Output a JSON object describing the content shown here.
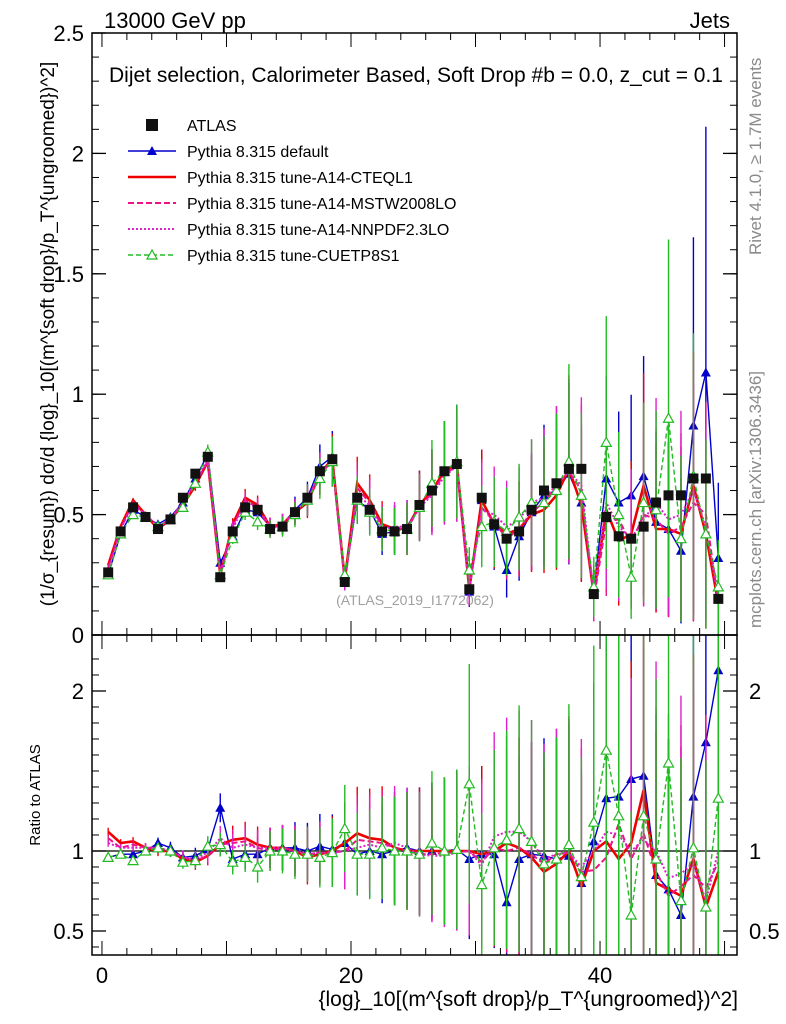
{
  "header": {
    "left": "13000 GeV pp",
    "right": "Jets",
    "subtitle": "Dijet selection, Calorimeter Based, Soft Drop #b = 0.0, z_cut = 0.1"
  },
  "side_labels": {
    "rivet": "Rivet 4.1.0, ≥ 1.7M events",
    "mcplots": "mcplots.cern.ch [arXiv:1306.3436]"
  },
  "watermark": "(ATLAS_2019_I1772062)",
  "chart_data": {
    "type": "line",
    "title": "Dijet selection, Calorimeter Based, Soft Drop #b = 0.0, z_cut = 0.1",
    "xlabel": "{log}_10[(m^{soft drop}/p_T^{ungroomed})^2]",
    "ylabel": "(1/σ_{resum}) dσ/d {log}_10[(m^{soft drop}/p_T^{ungroomed})^2]",
    "ratio_ylabel": "Ratio to ATLAS",
    "xlim": [
      -0.8,
      51
    ],
    "ylim": [
      0,
      2.5
    ],
    "ratio_ylim": [
      0.35,
      2.35
    ],
    "x_ticks": [
      0,
      20,
      40
    ],
    "y_ticks": [
      0,
      0.5,
      1,
      1.5,
      2,
      2.5
    ],
    "y_tick_labels": [
      "0",
      "0.5",
      "1",
      "1.5",
      "2",
      "2.5"
    ],
    "ratio_ticks": [
      0.5,
      1,
      2
    ],
    "ratio_tick_labels": [
      "0.5",
      "1",
      "2"
    ],
    "x": [
      0.5,
      1.5,
      2.5,
      3.5,
      4.5,
      5.5,
      6.5,
      7.5,
      8.5,
      9.5,
      10.5,
      11.5,
      12.5,
      13.5,
      14.5,
      15.5,
      16.5,
      17.5,
      18.5,
      19.5,
      20.5,
      21.5,
      22.5,
      23.5,
      24.5,
      25.5,
      26.5,
      27.5,
      28.5,
      29.5,
      30.5,
      31.5,
      32.5,
      33.5,
      34.5,
      35.5,
      36.5,
      37.5,
      38.5,
      39.5,
      40.5,
      41.5,
      42.5,
      43.5,
      44.5,
      45.5,
      46.5,
      47.5,
      48.5,
      49.5
    ],
    "series": [
      {
        "name": "ATLAS",
        "style": "data",
        "values": [
          0.26,
          0.43,
          0.53,
          0.49,
          0.44,
          0.48,
          0.57,
          0.67,
          0.74,
          0.24,
          0.43,
          0.53,
          0.52,
          0.44,
          0.45,
          0.51,
          0.57,
          0.68,
          0.73,
          0.22,
          0.57,
          0.52,
          0.43,
          0.43,
          0.44,
          0.54,
          0.6,
          0.68,
          0.71,
          0.19,
          0.57,
          0.46,
          0.4,
          0.43,
          0.52,
          0.6,
          0.63,
          0.69,
          0.69,
          0.17,
          0.49,
          0.41,
          0.4,
          0.45,
          0.55,
          0.58,
          0.58,
          0.65,
          0.65,
          0.15
        ],
        "ratio": [
          1,
          1,
          1,
          1,
          1,
          1,
          1,
          1,
          1,
          1,
          1,
          1,
          1,
          1,
          1,
          1,
          1,
          1,
          1,
          1,
          1,
          1,
          1,
          1,
          1,
          1,
          1,
          1,
          1,
          1,
          1,
          1,
          1,
          1,
          1,
          1,
          1,
          1,
          1,
          1,
          1,
          1,
          1,
          1,
          1,
          1,
          1,
          1,
          1,
          1
        ]
      },
      {
        "name": "Pythia 8.315 default",
        "color": "#0000cc",
        "dash": "",
        "marker": "triangle-filled",
        "values": [
          0.25,
          0.42,
          0.52,
          0.49,
          0.46,
          0.49,
          0.55,
          0.65,
          0.75,
          0.3,
          0.41,
          0.52,
          0.51,
          0.45,
          0.46,
          0.52,
          0.57,
          0.7,
          0.74,
          0.23,
          0.56,
          0.52,
          0.42,
          0.43,
          0.45,
          0.54,
          0.6,
          0.68,
          0.72,
          0.18,
          0.56,
          0.45,
          0.27,
          0.41,
          0.51,
          0.58,
          0.6,
          0.67,
          0.55,
          0.18,
          0.65,
          0.55,
          0.58,
          0.66,
          0.47,
          0.44,
          0.35,
          0.87,
          1.09,
          0.32
        ],
        "ratio": [
          0.96,
          0.98,
          0.98,
          1.0,
          1.05,
          1.02,
          0.96,
          0.97,
          1.01,
          1.27,
          0.95,
          0.98,
          0.98,
          1.02,
          1.02,
          1.02,
          1.0,
          1.03,
          1.01,
          1.05,
          0.98,
          1.0,
          0.98,
          1.0,
          1.02,
          1.0,
          1.0,
          1.0,
          1.01,
          0.95,
          0.98,
          0.98,
          0.68,
          0.95,
          0.98,
          0.97,
          0.95,
          0.97,
          0.8,
          1.06,
          1.33,
          1.34,
          1.45,
          1.47,
          0.85,
          0.76,
          0.6,
          1.34,
          1.68,
          2.13
        ]
      },
      {
        "name": "Pythia 8.315 tune-A14-CTEQL1",
        "color": "#ee0000",
        "dash": "",
        "width": 2.6,
        "values": [
          0.29,
          0.45,
          0.56,
          0.5,
          0.44,
          0.48,
          0.54,
          0.62,
          0.72,
          0.25,
          0.46,
          0.57,
          0.54,
          0.45,
          0.46,
          0.51,
          0.55,
          0.67,
          0.73,
          0.23,
          0.63,
          0.56,
          0.46,
          0.44,
          0.44,
          0.54,
          0.6,
          0.68,
          0.71,
          0.19,
          0.56,
          0.46,
          0.42,
          0.44,
          0.5,
          0.52,
          0.58,
          0.69,
          0.54,
          0.17,
          0.52,
          0.39,
          0.42,
          0.62,
          0.44,
          0.44,
          0.42,
          0.62,
          0.42,
          0.13
        ],
        "ratio": [
          1.12,
          1.05,
          1.06,
          1.02,
          1.0,
          1.0,
          0.95,
          0.93,
          0.97,
          1.04,
          1.07,
          1.08,
          1.04,
          1.02,
          1.02,
          1.0,
          0.96,
          0.98,
          1.0,
          1.05,
          1.11,
          1.08,
          1.07,
          1.02,
          1.0,
          1.0,
          1.0,
          1.0,
          1.0,
          1.0,
          0.98,
          1.0,
          1.05,
          1.02,
          0.96,
          0.87,
          0.92,
          1.0,
          0.78,
          1.0,
          1.06,
          0.95,
          1.05,
          1.38,
          0.8,
          0.76,
          0.72,
          0.95,
          0.65,
          0.87
        ]
      },
      {
        "name": "Pythia 8.315 tune-A14-MSTW2008LO",
        "color": "#ee1188",
        "dash": "6,3",
        "width": 2,
        "values": [
          0.28,
          0.44,
          0.55,
          0.5,
          0.45,
          0.48,
          0.55,
          0.63,
          0.72,
          0.25,
          0.45,
          0.56,
          0.53,
          0.44,
          0.46,
          0.51,
          0.56,
          0.67,
          0.72,
          0.22,
          0.61,
          0.55,
          0.45,
          0.44,
          0.44,
          0.53,
          0.59,
          0.67,
          0.7,
          0.19,
          0.53,
          0.47,
          0.4,
          0.44,
          0.51,
          0.55,
          0.62,
          0.68,
          0.6,
          0.15,
          0.47,
          0.48,
          0.38,
          0.5,
          0.48,
          0.42,
          0.45,
          0.55,
          0.5,
          0.14
        ],
        "ratio": [
          1.08,
          1.02,
          1.04,
          1.02,
          1.02,
          1.0,
          0.96,
          0.94,
          0.97,
          1.04,
          1.05,
          1.06,
          1.02,
          1.0,
          1.02,
          1.0,
          0.98,
          0.99,
          0.99,
          1.0,
          1.07,
          1.06,
          1.05,
          1.02,
          1.0,
          0.98,
          0.98,
          0.99,
          0.99,
          1.0,
          0.93,
          1.02,
          1.0,
          1.02,
          0.98,
          0.92,
          0.98,
          0.99,
          0.87,
          0.88,
          0.96,
          1.17,
          0.95,
          1.11,
          0.87,
          0.72,
          0.78,
          0.85,
          0.77,
          0.93
        ]
      },
      {
        "name": "Pythia 8.315 tune-A14-NNPDF2.3LO",
        "color": "#dd22cc",
        "dash": "2,2",
        "width": 2,
        "values": [
          0.27,
          0.44,
          0.54,
          0.5,
          0.45,
          0.48,
          0.55,
          0.64,
          0.73,
          0.26,
          0.44,
          0.55,
          0.53,
          0.45,
          0.46,
          0.51,
          0.56,
          0.67,
          0.72,
          0.22,
          0.58,
          0.54,
          0.44,
          0.45,
          0.45,
          0.53,
          0.58,
          0.66,
          0.7,
          0.19,
          0.52,
          0.5,
          0.45,
          0.48,
          0.55,
          0.57,
          0.62,
          0.68,
          0.62,
          0.17,
          0.55,
          0.45,
          0.4,
          0.48,
          0.55,
          0.48,
          0.5,
          0.6,
          0.45,
          0.15
        ],
        "ratio": [
          1.05,
          1.02,
          1.02,
          1.02,
          1.02,
          1.0,
          0.96,
          0.95,
          0.99,
          1.08,
          1.02,
          1.04,
          1.02,
          1.02,
          1.02,
          1.0,
          0.98,
          0.99,
          0.99,
          1.0,
          1.02,
          1.04,
          1.02,
          1.05,
          1.02,
          0.98,
          0.97,
          0.97,
          0.99,
          1.0,
          0.91,
          1.09,
          1.12,
          1.12,
          1.06,
          0.95,
          0.98,
          0.99,
          0.9,
          1.0,
          1.12,
          1.1,
          1.0,
          1.07,
          1.0,
          0.83,
          0.86,
          0.92,
          0.69,
          1.0
        ]
      },
      {
        "name": "Pythia 8.315 tune-CUETP8S1",
        "color": "#22bb22",
        "dash": "5,3",
        "marker": "triangle-open",
        "width": 1.4,
        "values": [
          0.25,
          0.42,
          0.5,
          0.49,
          0.45,
          0.48,
          0.53,
          0.63,
          0.76,
          0.25,
          0.4,
          0.51,
          0.47,
          0.44,
          0.45,
          0.5,
          0.56,
          0.65,
          0.72,
          0.25,
          0.56,
          0.51,
          0.44,
          0.43,
          0.44,
          0.53,
          0.63,
          0.68,
          0.72,
          0.27,
          0.45,
          0.47,
          0.43,
          0.49,
          0.55,
          0.55,
          0.6,
          0.72,
          0.58,
          0.2,
          0.8,
          0.5,
          0.24,
          0.55,
          0.52,
          0.9,
          0.4,
          0.66,
          0.42,
          0.2
        ],
        "ratio": [
          0.96,
          0.98,
          0.94,
          1.0,
          1.02,
          1.0,
          0.93,
          0.94,
          1.03,
          1.04,
          0.93,
          0.96,
          0.9,
          1.0,
          1.0,
          0.98,
          0.98,
          0.96,
          0.99,
          1.14,
          0.98,
          0.98,
          1.02,
          1.0,
          1.0,
          0.98,
          1.05,
          1.0,
          1.01,
          1.42,
          0.79,
          1.02,
          1.07,
          1.14,
          1.06,
          0.92,
          0.95,
          1.04,
          0.84,
          1.18,
          1.63,
          1.22,
          0.6,
          1.22,
          0.95,
          1.55,
          0.69,
          1.02,
          0.65,
          1.33
        ]
      }
    ]
  }
}
